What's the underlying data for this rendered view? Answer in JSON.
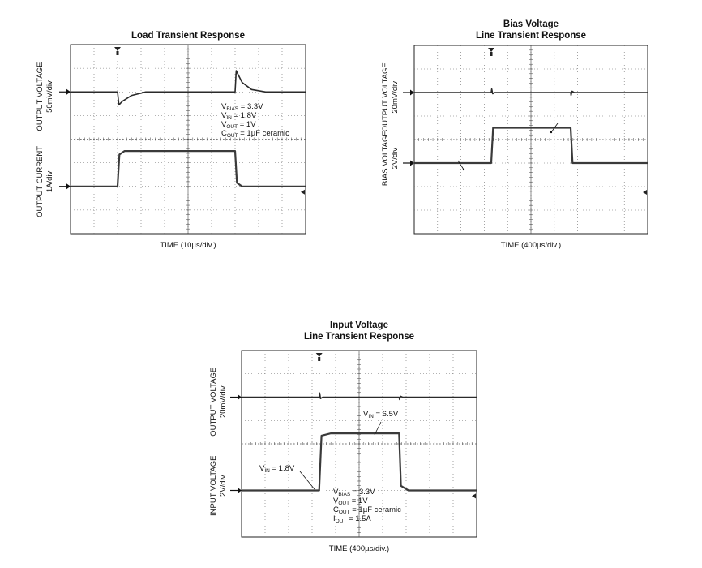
{
  "chart_data": [
    {
      "type": "line",
      "title_lines": [
        "Load Transient Response"
      ],
      "xlabel": "TIME (10µs/div.)",
      "divisions": {
        "x": 10,
        "y": 8
      },
      "channels": [
        {
          "label": "OUTPUT VOLTAGE",
          "scale": "50mV/div",
          "x": [
            0,
            2.0,
            2.06,
            2.2,
            2.6,
            3.2,
            7.0,
            7.05,
            7.12,
            7.3,
            7.7,
            8.3,
            10
          ],
          "y": [
            0,
            0,
            -0.55,
            -0.4,
            -0.15,
            0,
            0,
            0.9,
            0.75,
            0.4,
            0.1,
            0,
            0
          ]
        },
        {
          "label": "OUTPUT CURRENT",
          "scale": "1A/div",
          "x": [
            0,
            2.0,
            2.08,
            2.3,
            7.0,
            7.08,
            7.3,
            10
          ],
          "y": [
            0,
            0,
            1.35,
            1.5,
            1.5,
            0.15,
            0,
            0
          ]
        }
      ],
      "annotation": [
        {
          "base": "V",
          "sub": "BIAS",
          "rest": " = 3.3V"
        },
        {
          "base": "V",
          "sub": "IN",
          "rest": " = 1.8V"
        },
        {
          "base": "V",
          "sub": "OUT",
          "rest": " = 1V"
        },
        {
          "base": "C",
          "sub": "OUT",
          "rest": " = 1µF ceramic"
        }
      ]
    },
    {
      "type": "line",
      "title_lines": [
        "Bias Voltage",
        "Line Transient Response"
      ],
      "xlabel": "TIME (400µs/div.)",
      "divisions": {
        "x": 10,
        "y": 8
      },
      "channels": [
        {
          "label": "OUTPUT VOLTAGE",
          "scale": "20mV/div",
          "x": [
            0,
            3.3,
            3.32,
            3.36,
            3.45,
            6.7,
            6.72,
            6.76,
            6.85,
            10
          ],
          "y": [
            0,
            0,
            0.15,
            -0.05,
            0,
            0,
            -0.12,
            0.05,
            0,
            0
          ]
        },
        {
          "label": "BIAS VOLTAGE",
          "scale": "2V/div",
          "x": [
            0,
            3.3,
            3.38,
            6.7,
            6.78,
            10
          ],
          "y": [
            0,
            0,
            1.5,
            1.5,
            0,
            0
          ]
        }
      ],
      "annotation": []
    },
    {
      "type": "line",
      "title_lines": [
        "Input Voltage",
        "Line Transient Response"
      ],
      "xlabel": "TIME (400µs/div.)",
      "divisions": {
        "x": 10,
        "y": 8
      },
      "channels": [
        {
          "label": "OUTPUT VOLTAGE",
          "scale": "20mV/div",
          "x": [
            0,
            3.3,
            3.32,
            3.36,
            3.45,
            6.7,
            6.72,
            6.76,
            6.85,
            10
          ],
          "y": [
            0,
            0,
            0.18,
            -0.06,
            0,
            0,
            -0.1,
            0.04,
            0,
            0
          ]
        },
        {
          "label": "INPUT VOLTAGE",
          "scale": "2V/div",
          "x": [
            0,
            3.3,
            3.4,
            3.8,
            6.7,
            6.78,
            7.1,
            10
          ],
          "y": [
            0,
            0,
            2.35,
            2.45,
            2.45,
            0.2,
            0,
            0
          ]
        }
      ],
      "annotation": [
        {
          "base": "V",
          "sub": "BIAS",
          "rest": " = 3.3V"
        },
        {
          "base": "V",
          "sub": "OUT",
          "rest": " = 1V"
        },
        {
          "base": "C",
          "sub": "OUT",
          "rest": " = 1µF ceramic"
        },
        {
          "base": "I",
          "sub": "OUT",
          "rest": " = 1.5A"
        }
      ],
      "callouts": [
        {
          "base": "V",
          "sub": "IN",
          "rest": " = 1.8V"
        },
        {
          "base": "V",
          "sub": "IN",
          "rest": " = 6.5V"
        }
      ]
    }
  ]
}
